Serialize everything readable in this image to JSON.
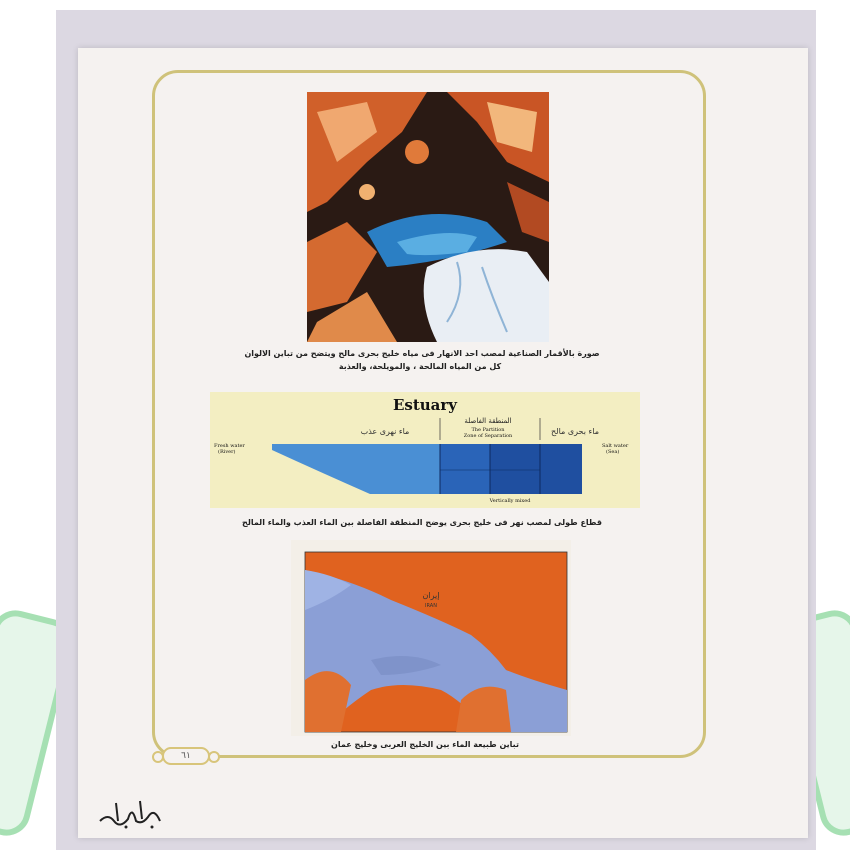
{
  "figure1": {
    "caption_line1": "صورة بالأقمار الصناعية لمصب احد الانهار فى مياه خليج بحرى مالح ويتضح من تباين الالوان",
    "caption_line2": "كل من المياه المالحة ، والمويلحة، والعذبة"
  },
  "figure2": {
    "title": "Estuary",
    "zone_ar": "المنطقة الفاصلة",
    "zone_en1": "The Partition",
    "zone_en2": "Zone of Separation",
    "fresh_ar": "ماء نهرى عذب",
    "salt_ar": "ماء بحرى مالح",
    "fresh_en1": "Fresh water",
    "fresh_en2": "(River)",
    "salt_en1": "Salt water",
    "salt_en2": "(Sea)",
    "mixing_label": "Vertically mixed",
    "caption": "قطاع طولى لمصب نهر فى خليج بحرى يوضح المنطقة الفاصلة بين الماء العذب والماء المالح"
  },
  "figure3": {
    "country_ar": "إيران",
    "country_en": "IRAN",
    "caption": "تباين طبيعة الماء بين الخليج العربى وخليج عمان"
  },
  "page_number": "٦١",
  "logo_text": "المسيرة"
}
